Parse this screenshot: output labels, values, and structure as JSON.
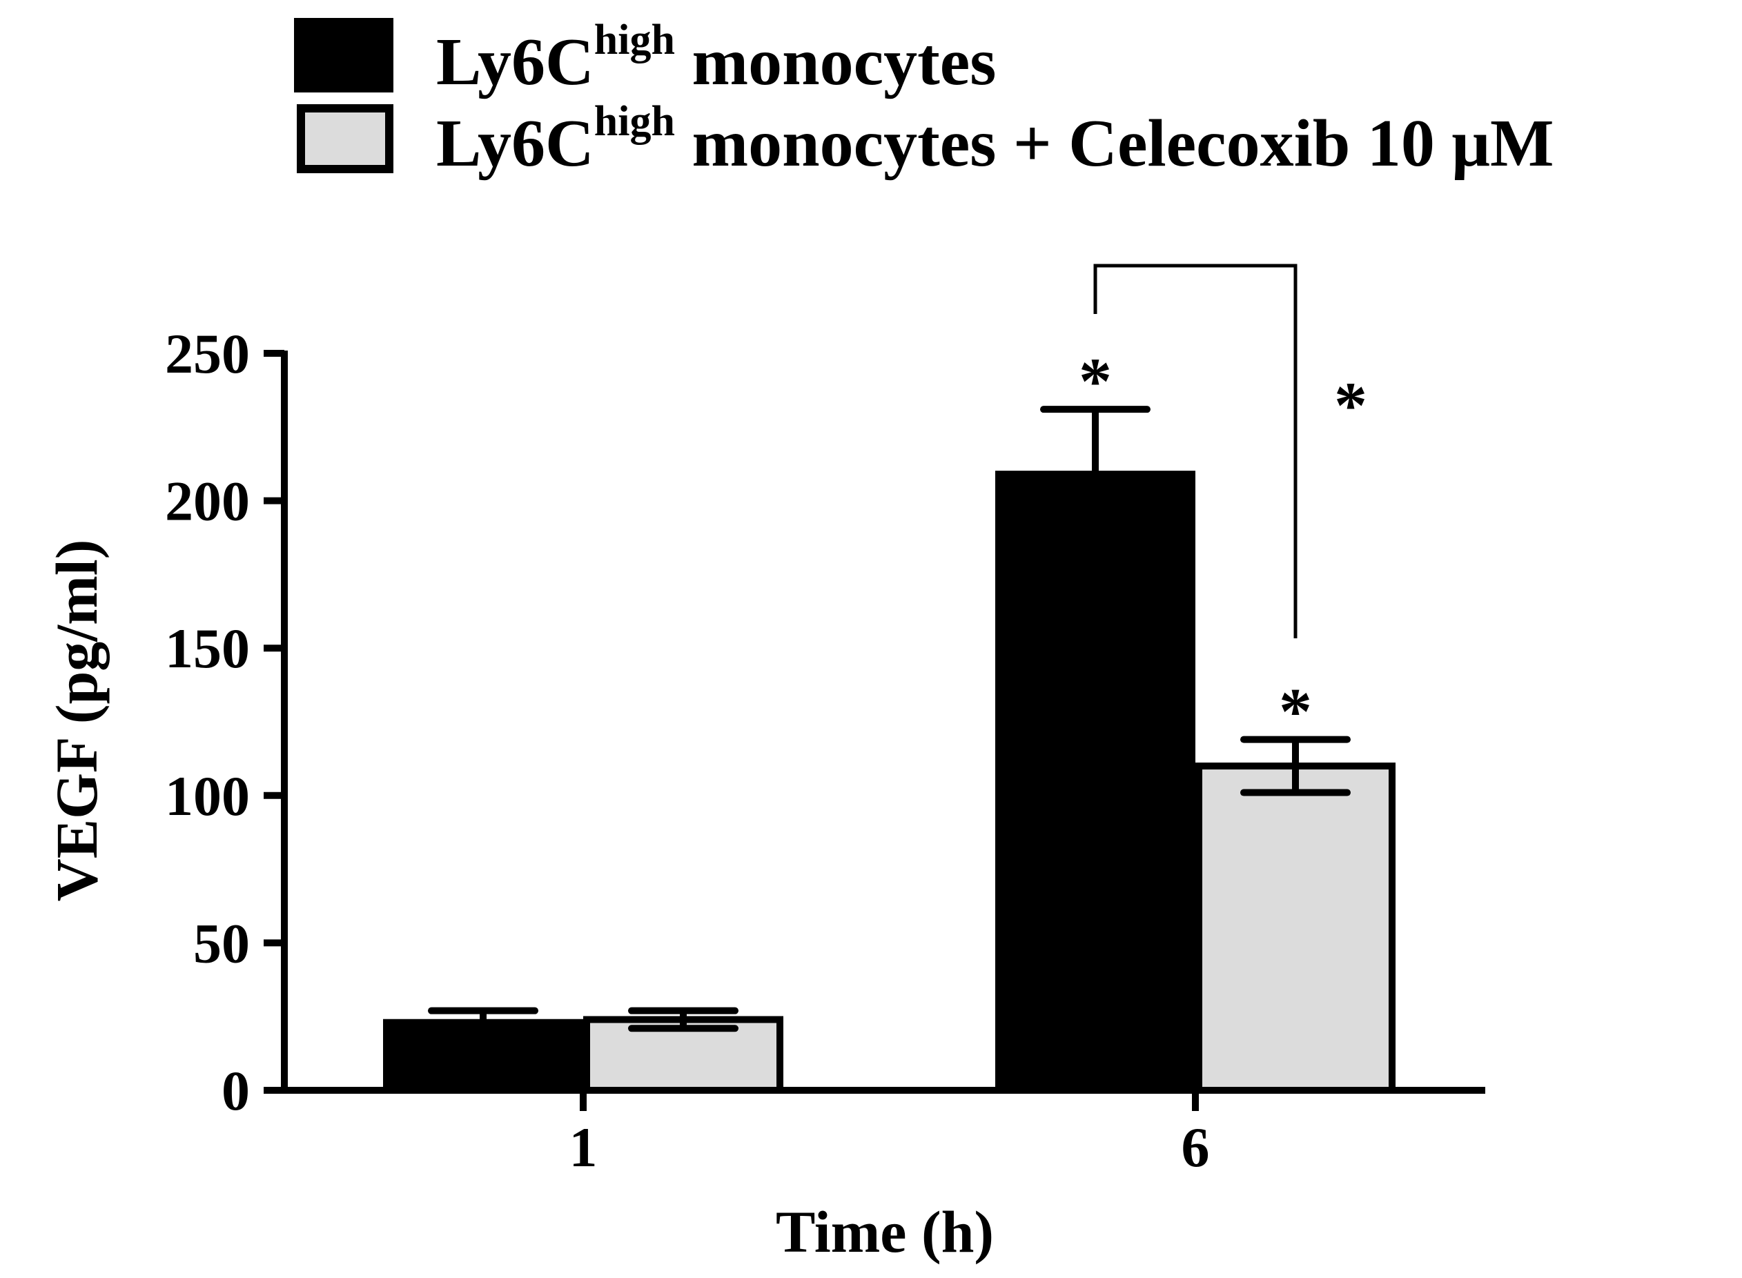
{
  "chart_data": {
    "type": "bar",
    "categories": [
      "1",
      "6"
    ],
    "xlabel": "Time (h)",
    "ylabel": "VEGF (pg/ml)",
    "ylim": [
      0,
      250
    ],
    "yticks": [
      0,
      50,
      100,
      150,
      200,
      250
    ],
    "grid": false,
    "legend_placement": "top",
    "series": [
      {
        "name": "Ly6C",
        "name_sup": "high",
        "name_rest": " monocytes",
        "color": "#000000",
        "values": [
          23,
          209
        ],
        "errors": [
          4,
          22
        ],
        "significance": [
          "",
          "*"
        ]
      },
      {
        "name": "Ly6C",
        "name_sup": "high",
        "name_rest": " monocytes + Celecoxib 10 μM",
        "color": "#dcdcdc",
        "values": [
          24,
          110
        ],
        "errors": [
          3,
          9
        ],
        "significance": [
          "",
          "*"
        ]
      }
    ],
    "comparisons": [
      {
        "category": "6",
        "between": [
          0,
          1
        ],
        "label": "*"
      }
    ]
  }
}
